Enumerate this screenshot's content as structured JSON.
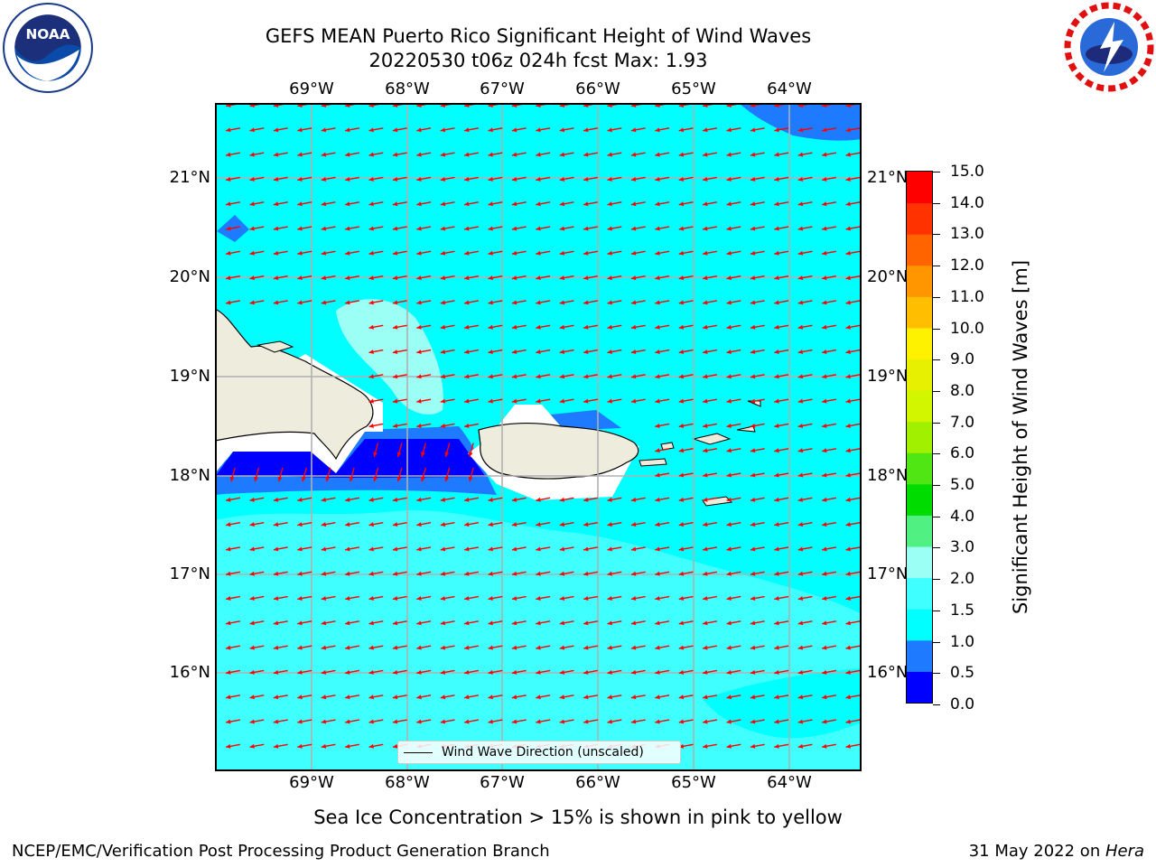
{
  "title_line1": "GEFS MEAN Puerto Rico Significant Height of Wind Waves",
  "title_line2": "20220530 t06z 024h fcst   Max: 1.93",
  "logos": {
    "left": "noaa-logo",
    "right": "national-weather-service-logo"
  },
  "lon_labels": [
    "69°W",
    "68°W",
    "67°W",
    "66°W",
    "65°W",
    "64°W"
  ],
  "lat_labels": [
    "21°N",
    "20°N",
    "19°N",
    "18°N",
    "17°N",
    "16°N"
  ],
  "legend_label": "Wind Wave Direction (unscaled)",
  "colorbar": {
    "title": "Significant Height of Wind Waves [m]",
    "tick_labels": [
      "15.0",
      "14.0",
      "13.0",
      "12.0",
      "11.0",
      "10.0",
      "9.0",
      "8.0",
      "7.0",
      "6.0",
      "5.0",
      "4.0",
      "3.0",
      "2.0",
      "1.5",
      "1.0",
      "0.5",
      "0.0"
    ],
    "bands": [
      {
        "from": 0.0,
        "to": 0.5,
        "color": "#0000ff"
      },
      {
        "from": 0.5,
        "to": 1.0,
        "color": "#1e7bff"
      },
      {
        "from": 1.0,
        "to": 1.5,
        "color": "#00ffff"
      },
      {
        "from": 1.5,
        "to": 2.0,
        "color": "#40ffff"
      },
      {
        "from": 2.0,
        "to": 3.0,
        "color": "#9cfff5"
      },
      {
        "from": 3.0,
        "to": 4.0,
        "color": "#50f082"
      },
      {
        "from": 4.0,
        "to": 5.0,
        "color": "#00dc00"
      },
      {
        "from": 5.0,
        "to": 6.0,
        "color": "#50e614"
      },
      {
        "from": 6.0,
        "to": 7.0,
        "color": "#a0f000"
      },
      {
        "from": 7.0,
        "to": 8.0,
        "color": "#d2f500"
      },
      {
        "from": 8.0,
        "to": 9.0,
        "color": "#e6f000"
      },
      {
        "from": 9.0,
        "to": 10.0,
        "color": "#fff200"
      },
      {
        "from": 10.0,
        "to": 11.0,
        "color": "#ffbe00"
      },
      {
        "from": 11.0,
        "to": 12.0,
        "color": "#ff9600"
      },
      {
        "from": 12.0,
        "to": 13.0,
        "color": "#ff6400"
      },
      {
        "from": 13.0,
        "to": 14.0,
        "color": "#ff3200"
      },
      {
        "from": 14.0,
        "to": 15.0,
        "color": "#ff0000"
      }
    ]
  },
  "colors": {
    "land": "#eeecdc",
    "grid": "#b0b0b0",
    "arrow": "#ff0000"
  },
  "footer_note": "Sea Ice Concentration > 15% is shown in pink to yellow",
  "footer_left": "NCEP/EMC/Verification Post Processing Product Generation Branch",
  "footer_right_prefix": "31 May 2022 on ",
  "footer_right_host": "Hera"
}
